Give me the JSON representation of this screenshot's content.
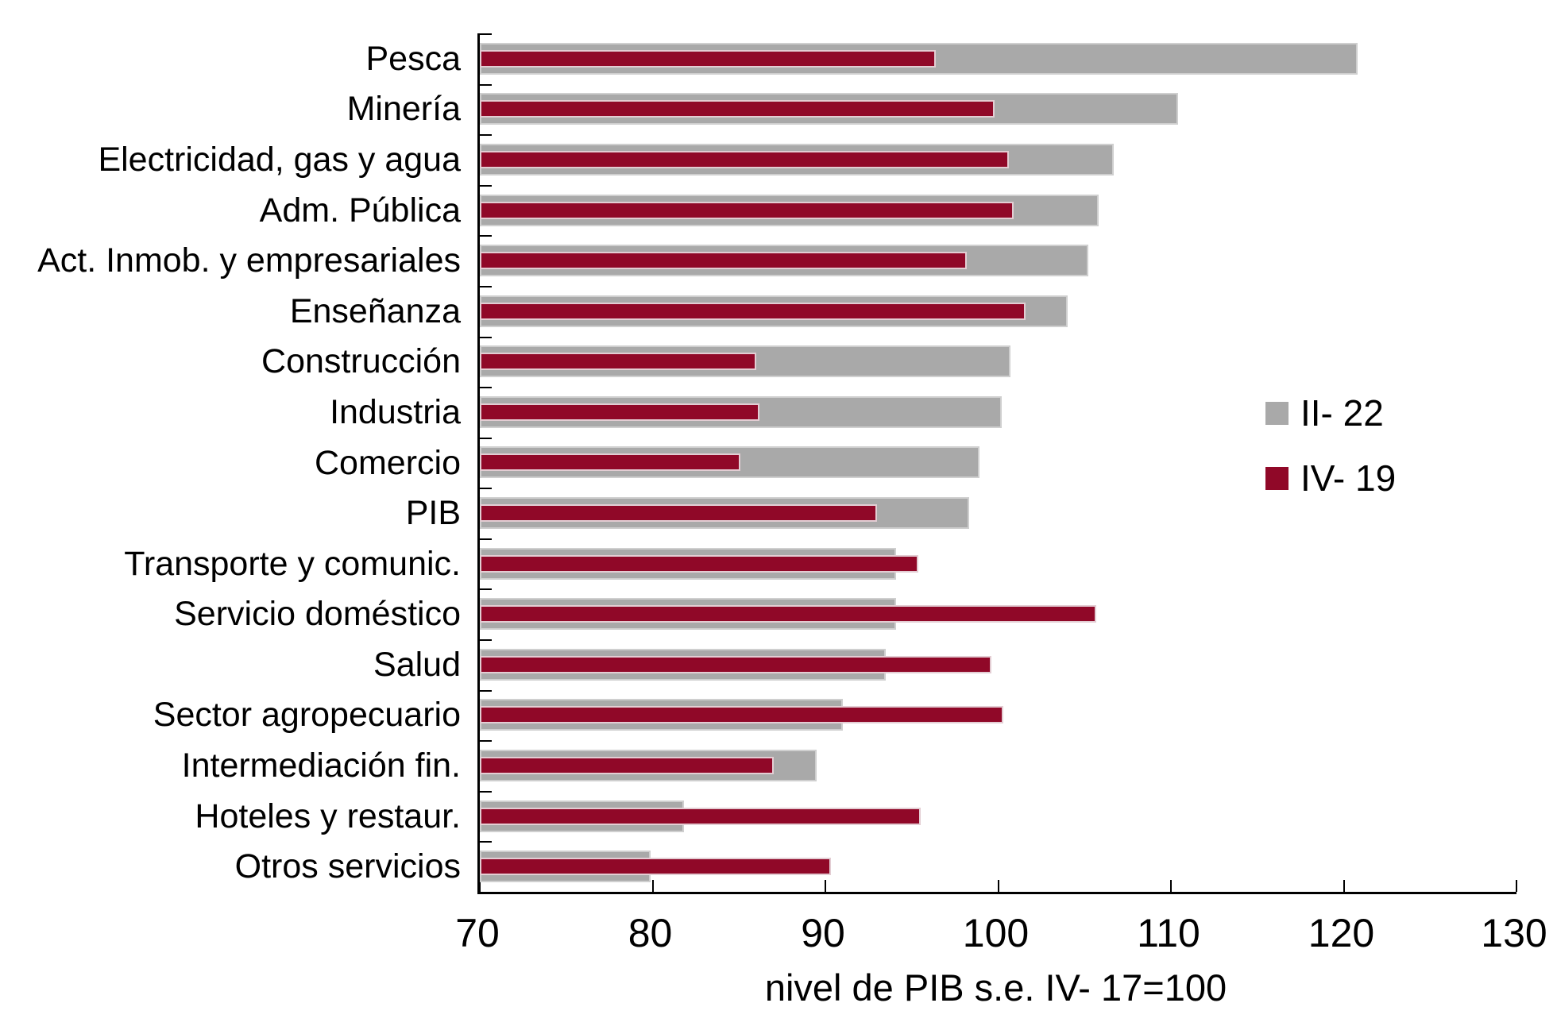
{
  "chart_data": {
    "type": "bar",
    "orientation": "horizontal",
    "title": "",
    "xlabel": "nivel de PIB s.e. IV- 17=100",
    "xlim": [
      70,
      130
    ],
    "xticks": [
      70,
      80,
      90,
      100,
      110,
      120,
      130
    ],
    "grid": false,
    "legend_position": "middle-right",
    "categories": [
      "Pesca",
      "Minería",
      "Electricidad, gas y agua",
      "Adm. Pública",
      "Act. Inmob. y empresariales",
      "Enseñanza",
      "Construcción",
      "Industria",
      "Comercio",
      "PIB",
      "Transporte y comunic.",
      "Servicio doméstico",
      "Salud",
      "Sector agropecuario",
      "Intermediación fin.",
      "Hoteles y restaur.",
      "Otros servicios"
    ],
    "series": [
      {
        "name": "II- 22",
        "color": "#A9A9A9",
        "values": [
          120.8,
          110.4,
          106.7,
          105.8,
          105.2,
          104.0,
          100.7,
          100.2,
          98.9,
          98.3,
          94.1,
          94.1,
          93.5,
          91.0,
          89.5,
          81.8,
          79.9
        ]
      },
      {
        "name": "IV- 19",
        "color": "#900828",
        "values": [
          96.4,
          99.8,
          100.6,
          100.9,
          98.2,
          101.6,
          86.0,
          86.2,
          85.1,
          93.0,
          95.4,
          105.7,
          99.6,
          100.3,
          87.0,
          95.5,
          90.3
        ]
      }
    ]
  },
  "colors": {
    "axis": "#000000",
    "background": "#ffffff"
  }
}
